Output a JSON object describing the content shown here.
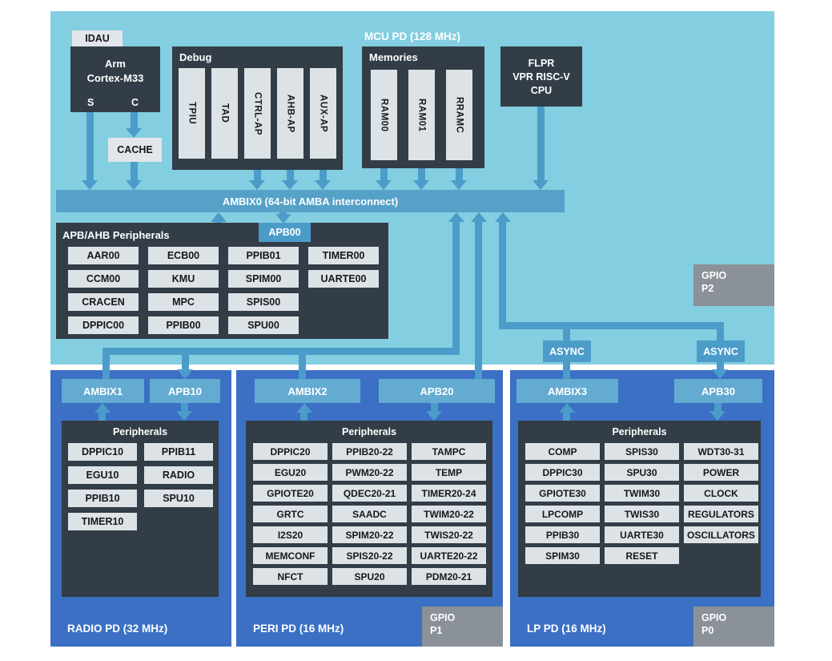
{
  "mcu": {
    "title": "MCU PD (128 MHz)",
    "idau": "IDAU",
    "cortex": {
      "line1": "Arm",
      "line2": "Cortex-M33",
      "port_s": "S",
      "port_c": "C"
    },
    "cache": "CACHE",
    "debug": {
      "label": "Debug",
      "slats": [
        "TPIU",
        "TAD",
        "CTRL-AP",
        "AHB-AP",
        "AUX-AP"
      ]
    },
    "memories": {
      "label": "Memories",
      "slats": [
        "RAM00",
        "RAM01",
        "RRAMC"
      ]
    },
    "flpr": {
      "line1": "FLPR",
      "line2": "VPR RISC-V",
      "line3": "CPU"
    },
    "ambix0": "AMBIX0 (64-bit AMBA interconnect)",
    "apb_ahb": {
      "label": "APB/AHB Peripherals",
      "tab": "APB00",
      "rows": [
        [
          "AAR00",
          "ECB00",
          "PPIB01",
          "TIMER00"
        ],
        [
          "CCM00",
          "KMU",
          "SPIM00",
          "UARTE00"
        ],
        [
          "CRACEN",
          "MPC",
          "SPIS00"
        ],
        [
          "DPPIC00",
          "PPIB00",
          "SPU00"
        ]
      ]
    },
    "gpio_p2": {
      "line1": "GPIO",
      "line2": "P2"
    },
    "async1": "ASYNC",
    "async2": "ASYNC"
  },
  "domains": [
    {
      "name": "RADIO PD (32 MHz)",
      "bus": "AMBIX1",
      "apb": "APB10",
      "peripherals_label": "Peripherals",
      "rows": [
        [
          "DPPIC10",
          "PPIB11"
        ],
        [
          "EGU10",
          "RADIO"
        ],
        [
          "PPIB10",
          "SPU10"
        ],
        [
          "TIMER10"
        ]
      ]
    },
    {
      "name": "PERI PD (16 MHz)",
      "bus": "AMBIX2",
      "apb": "APB20",
      "peripherals_label": "Peripherals",
      "gpio": {
        "line1": "GPIO",
        "line2": "P1"
      },
      "rows": [
        [
          "DPPIC20",
          "PPIB20-22",
          "TAMPC"
        ],
        [
          "EGU20",
          "PWM20-22",
          "TEMP"
        ],
        [
          "GPIOTE20",
          "QDEC20-21",
          "TIMER20-24"
        ],
        [
          "GRTC",
          "SAADC",
          "TWIM20-22"
        ],
        [
          "I2S20",
          "SPIM20-22",
          "TWIS20-22"
        ],
        [
          "MEMCONF",
          "SPIS20-22",
          "UARTE20-22"
        ],
        [
          "NFCT",
          "SPU20",
          "PDM20-21"
        ]
      ]
    },
    {
      "name": "LP PD (16 MHz)",
      "bus": "AMBIX3",
      "apb": "APB30",
      "peripherals_label": "Peripherals",
      "gpio": {
        "line1": "GPIO",
        "line2": "P0"
      },
      "rows": [
        [
          "COMP",
          "SPIS30",
          "WDT30-31"
        ],
        [
          "DPPIC30",
          "SPU30",
          "POWER"
        ],
        [
          "GPIOTE30",
          "TWIM30",
          "CLOCK"
        ],
        [
          "LPCOMP",
          "TWIS30",
          "REGULATORS"
        ],
        [
          "PPIB30",
          "UARTE30",
          "OSCILLATORS"
        ],
        [
          "SPIM30",
          "RESET"
        ]
      ]
    }
  ],
  "colors": {
    "mcu_background": "#83cee0",
    "domain_background": "#3b70c4",
    "block_dark": "#323d47",
    "cell_light": "#dde2e6",
    "connector_blue": "#4c9cca",
    "bus_block_blue": "#64abd2",
    "gpio_gray": "#8b9199"
  }
}
